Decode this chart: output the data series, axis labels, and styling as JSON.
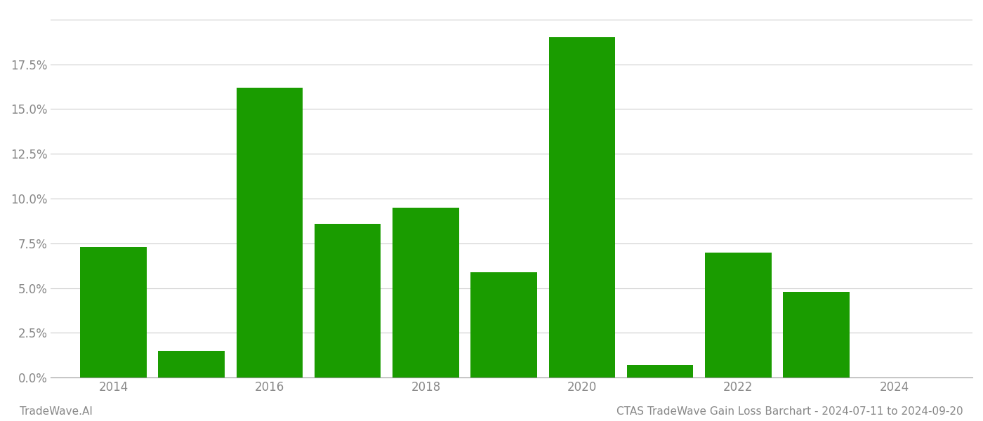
{
  "years": [
    2014,
    2015,
    2016,
    2017,
    2018,
    2019,
    2020,
    2021,
    2022,
    2023,
    2024
  ],
  "values": [
    0.073,
    0.015,
    0.162,
    0.086,
    0.095,
    0.059,
    0.19,
    0.007,
    0.07,
    0.048,
    0.0
  ],
  "bar_color": "#1a9c00",
  "background_color": "#ffffff",
  "grid_color": "#cccccc",
  "axis_color": "#999999",
  "tick_color": "#888888",
  "ylim": [
    0,
    0.205
  ],
  "yticks": [
    0.0,
    0.025,
    0.05,
    0.075,
    0.1,
    0.125,
    0.15,
    0.175,
    0.2
  ],
  "ytick_labels": [
    "0.0%",
    "2.5%",
    "5.0%",
    "7.5%",
    "10.0%",
    "12.5%",
    "15.0%",
    "17.5%",
    ""
  ],
  "xtick_labels": [
    "2014",
    "2016",
    "2018",
    "2020",
    "2022",
    "2024"
  ],
  "xticks": [
    2014,
    2016,
    2018,
    2020,
    2022,
    2024
  ],
  "xlim_left": 2013.2,
  "xlim_right": 2025.0,
  "footer_left": "TradeWave.AI",
  "footer_right": "CTAS TradeWave Gain Loss Barchart - 2024-07-11 to 2024-09-20",
  "footer_color": "#888888",
  "footer_fontsize": 11,
  "bar_width": 0.85,
  "tick_fontsize": 12
}
